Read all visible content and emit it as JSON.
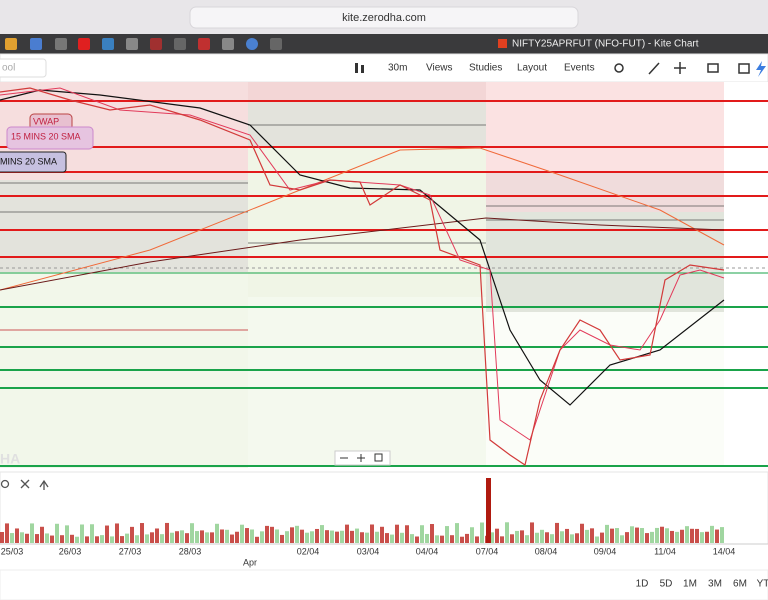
{
  "browser": {
    "url": "kite.zerodha.com",
    "tab_title": "NIFTY25APRFUT (NFO-FUT) - Kite Chart"
  },
  "toolbar": {
    "search": "ool",
    "interval": "30m",
    "menus": [
      "Views",
      "Studies",
      "Layout",
      "Events"
    ]
  },
  "chart": {
    "labels": [
      "VWAP",
      "15 MINS 20 SMA",
      "MINS 20 SMA"
    ],
    "watermark": "HA",
    "x_axis": [
      "25/03",
      "26/03",
      "27/03",
      "28/03",
      "Apr",
      "02/04",
      "03/04",
      "04/04",
      "07/04",
      "08/04",
      "09/04",
      "11/04",
      "14/04"
    ]
  },
  "ranges": [
    "1D",
    "5D",
    "1M",
    "3M",
    "6M",
    "YT"
  ]
}
